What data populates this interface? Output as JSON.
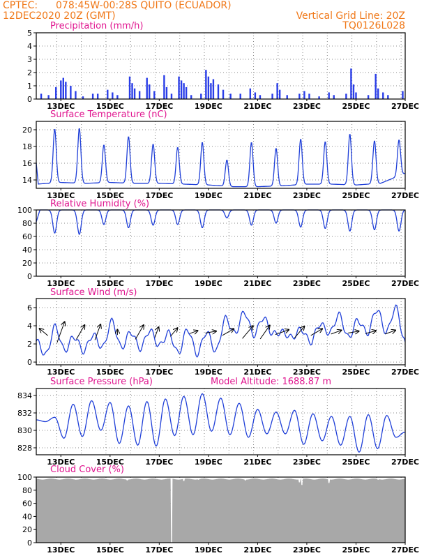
{
  "header": {
    "source": "CPTEC:",
    "location": "078:45W-00:28S  QUITO (ECUADOR)",
    "run": "12DEC2020 20Z (GMT)",
    "grid_note": "Vertical Grid Line: 20Z",
    "code": "TQ0126L028"
  },
  "panels": {
    "precipitation": {
      "title": "Precipitation (mm/h)"
    },
    "temperature": {
      "title": "Surface Temperature (nC)"
    },
    "humidity": {
      "title": "Relative Humidity (%)"
    },
    "wind": {
      "title": "Surface Wind (m/s)"
    },
    "pressure": {
      "title": "Surface Pressure (hPa)",
      "note": "Model Altitude: 1688.87 m"
    },
    "cloud": {
      "title": "Cloud Cover (%)"
    }
  },
  "date_ticks": [
    "13DEC",
    "15DEC",
    "17DEC",
    "19DEC",
    "21DEC",
    "23DEC",
    "25DEC",
    "27DEC"
  ],
  "colors": {
    "header": "#f07818",
    "title": "#e0158f",
    "series": "#1f3fd8",
    "bars": "#2a3ee8",
    "cloud": "#a8a8a8"
  },
  "chart_data": [
    {
      "type": "bar",
      "name": "precipitation",
      "x_range_days": [
        12.0,
        27.0
      ],
      "ylim": [
        0,
        5
      ],
      "yticks": [
        0,
        1,
        2,
        3,
        4,
        5
      ],
      "events": [
        {
          "day": 12.2,
          "value": 0.4
        },
        {
          "day": 12.5,
          "value": 0.3
        },
        {
          "day": 12.8,
          "value": 0.9
        },
        {
          "day": 13.0,
          "value": 1.4
        },
        {
          "day": 13.1,
          "value": 1.6
        },
        {
          "day": 13.2,
          "value": 1.3
        },
        {
          "day": 13.4,
          "value": 1.0
        },
        {
          "day": 13.6,
          "value": 0.6
        },
        {
          "day": 13.9,
          "value": 0.2
        },
        {
          "day": 14.3,
          "value": 0.4
        },
        {
          "day": 14.5,
          "value": 0.4
        },
        {
          "day": 14.9,
          "value": 0.7
        },
        {
          "day": 15.1,
          "value": 0.5
        },
        {
          "day": 15.3,
          "value": 0.3
        },
        {
          "day": 15.8,
          "value": 1.7
        },
        {
          "day": 15.9,
          "value": 1.2
        },
        {
          "day": 16.0,
          "value": 0.8
        },
        {
          "day": 16.2,
          "value": 0.6
        },
        {
          "day": 16.5,
          "value": 1.6
        },
        {
          "day": 16.6,
          "value": 1.1
        },
        {
          "day": 16.8,
          "value": 0.6
        },
        {
          "day": 17.2,
          "value": 1.8
        },
        {
          "day": 17.3,
          "value": 0.9
        },
        {
          "day": 17.5,
          "value": 0.4
        },
        {
          "day": 17.8,
          "value": 1.7
        },
        {
          "day": 17.9,
          "value": 1.4
        },
        {
          "day": 18.0,
          "value": 1.2
        },
        {
          "day": 18.1,
          "value": 0.9
        },
        {
          "day": 18.3,
          "value": 0.3
        },
        {
          "day": 18.7,
          "value": 0.4
        },
        {
          "day": 18.9,
          "value": 2.2
        },
        {
          "day": 19.0,
          "value": 1.7
        },
        {
          "day": 19.1,
          "value": 1.2
        },
        {
          "day": 19.2,
          "value": 1.5
        },
        {
          "day": 19.4,
          "value": 1.1
        },
        {
          "day": 19.6,
          "value": 0.7
        },
        {
          "day": 19.9,
          "value": 0.4
        },
        {
          "day": 20.3,
          "value": 0.4
        },
        {
          "day": 20.7,
          "value": 0.8
        },
        {
          "day": 20.9,
          "value": 0.5
        },
        {
          "day": 21.1,
          "value": 0.3
        },
        {
          "day": 21.6,
          "value": 0.4
        },
        {
          "day": 21.8,
          "value": 1.2
        },
        {
          "day": 21.9,
          "value": 0.7
        },
        {
          "day": 22.2,
          "value": 0.3
        },
        {
          "day": 22.7,
          "value": 0.4
        },
        {
          "day": 22.9,
          "value": 0.6
        },
        {
          "day": 23.1,
          "value": 0.4
        },
        {
          "day": 23.5,
          "value": 0.2
        },
        {
          "day": 23.9,
          "value": 0.5
        },
        {
          "day": 24.1,
          "value": 0.3
        },
        {
          "day": 24.6,
          "value": 0.4
        },
        {
          "day": 24.8,
          "value": 2.3
        },
        {
          "day": 24.9,
          "value": 1.1
        },
        {
          "day": 25.0,
          "value": 0.5
        },
        {
          "day": 25.5,
          "value": 0.3
        },
        {
          "day": 25.8,
          "value": 1.9
        },
        {
          "day": 25.9,
          "value": 0.8
        },
        {
          "day": 26.1,
          "value": 0.5
        },
        {
          "day": 26.3,
          "value": 0.3
        },
        {
          "day": 26.9,
          "value": 0.6
        }
      ]
    },
    {
      "type": "line",
      "name": "temperature",
      "x_range_days": [
        12.0,
        27.0
      ],
      "ylim": [
        13,
        21
      ],
      "yticks": [
        14,
        16,
        18,
        20
      ],
      "daily_peaks": [
        {
          "day": 12.75,
          "value": 20.1
        },
        {
          "day": 13.75,
          "value": 20.2
        },
        {
          "day": 14.75,
          "value": 18.2
        },
        {
          "day": 15.75,
          "value": 19.2
        },
        {
          "day": 16.75,
          "value": 18.3
        },
        {
          "day": 17.75,
          "value": 17.9
        },
        {
          "day": 18.75,
          "value": 18.5
        },
        {
          "day": 19.75,
          "value": 16.4
        },
        {
          "day": 20.75,
          "value": 18.5
        },
        {
          "day": 21.75,
          "value": 17.8
        },
        {
          "day": 22.75,
          "value": 18.9
        },
        {
          "day": 23.75,
          "value": 18.6
        },
        {
          "day": 24.75,
          "value": 19.5
        },
        {
          "day": 25.75,
          "value": 18.7
        },
        {
          "day": 26.75,
          "value": 18.8
        }
      ],
      "daily_min": [
        13.5,
        13.7,
        13.6,
        13.7,
        13.6,
        13.6,
        13.5,
        13.4,
        13.2,
        13.2,
        13.3,
        13.5,
        13.5,
        13.4,
        13.6,
        14.8
      ]
    },
    {
      "type": "line",
      "name": "relative_humidity",
      "x_range_days": [
        12.0,
        27.0
      ],
      "ylim": [
        0,
        100
      ],
      "yticks": [
        0,
        20,
        40,
        60,
        80,
        100
      ],
      "daily_minima": [
        {
          "day": 12.75,
          "value": 65
        },
        {
          "day": 13.75,
          "value": 63
        },
        {
          "day": 14.75,
          "value": 78
        },
        {
          "day": 15.75,
          "value": 73
        },
        {
          "day": 16.75,
          "value": 77
        },
        {
          "day": 17.75,
          "value": 78
        },
        {
          "day": 18.75,
          "value": 73
        },
        {
          "day": 19.75,
          "value": 88
        },
        {
          "day": 20.75,
          "value": 77
        },
        {
          "day": 21.75,
          "value": 80
        },
        {
          "day": 22.75,
          "value": 74
        },
        {
          "day": 23.75,
          "value": 72
        },
        {
          "day": 24.75,
          "value": 68
        },
        {
          "day": 25.75,
          "value": 70
        },
        {
          "day": 26.75,
          "value": 68
        }
      ]
    },
    {
      "type": "line",
      "name": "surface_wind",
      "x_range_days": [
        12.0,
        27.0
      ],
      "ylim": [
        -0.3,
        7
      ],
      "yticks": [
        0,
        2,
        4,
        6
      ],
      "speed": [
        2.3,
        0.8,
        3.9,
        1.3,
        2.8,
        1.2,
        3.0,
        1.6,
        4.5,
        1.6,
        3.3,
        1.5,
        3.5,
        1.8,
        3.2,
        1.0,
        3.6,
        0.9,
        3.3,
        1.2,
        4.8,
        3.2,
        5.5,
        3.0,
        4.9,
        3.1,
        3.3,
        2.7,
        3.6,
        2.2,
        4.2,
        3.2,
        5.2,
        2.7,
        4.6,
        3.2,
        5.8,
        3.3,
        6.0,
        2.2
      ],
      "vectors": [
        {
          "day": 12.3,
          "speed": 1.0,
          "dir_deg": 130
        },
        {
          "day": 13.0,
          "speed": 2.0,
          "dir_deg": 200
        },
        {
          "day": 13.8,
          "speed": 1.5,
          "dir_deg": 210
        },
        {
          "day": 14.5,
          "speed": 1.5,
          "dir_deg": 200
        },
        {
          "day": 15.3,
          "speed": 0.5,
          "dir_deg": 180
        },
        {
          "day": 16.2,
          "speed": 1.5,
          "dir_deg": 210
        },
        {
          "day": 16.9,
          "speed": 1.0,
          "dir_deg": 200
        },
        {
          "day": 17.6,
          "speed": 1.0,
          "dir_deg": 220
        },
        {
          "day": 18.4,
          "speed": 0.8,
          "dir_deg": 250
        },
        {
          "day": 19.1,
          "speed": 1.0,
          "dir_deg": 260
        },
        {
          "day": 19.8,
          "speed": 1.2,
          "dir_deg": 240
        },
        {
          "day": 20.6,
          "speed": 1.5,
          "dir_deg": 220
        },
        {
          "day": 21.3,
          "speed": 1.5,
          "dir_deg": 215
        },
        {
          "day": 22.0,
          "speed": 1.3,
          "dir_deg": 250
        },
        {
          "day": 22.7,
          "speed": 1.4,
          "dir_deg": 220
        },
        {
          "day": 23.4,
          "speed": 1.2,
          "dir_deg": 240
        },
        {
          "day": 24.2,
          "speed": 1.0,
          "dir_deg": 250
        },
        {
          "day": 24.9,
          "speed": 1.0,
          "dir_deg": 260
        },
        {
          "day": 25.6,
          "speed": 1.0,
          "dir_deg": 255
        },
        {
          "day": 26.4,
          "speed": 1.0,
          "dir_deg": 250
        }
      ]
    },
    {
      "type": "line",
      "name": "surface_pressure",
      "x_range_days": [
        12.0,
        27.0
      ],
      "ylim": [
        827.2,
        834.8
      ],
      "yticks": [
        828,
        830,
        832,
        834
      ],
      "half_day_extrema": [
        831.2,
        831.0,
        831.5,
        829.1,
        833.0,
        829.3,
        833.4,
        830.0,
        833.2,
        828.5,
        832.8,
        828.3,
        833.3,
        828.2,
        833.6,
        829.4,
        833.9,
        829.5,
        834.2,
        829.9,
        833.7,
        829.5,
        833.1,
        829.2,
        832.4,
        829.6,
        832.1,
        829.6,
        832.3,
        828.4,
        831.9,
        828.8,
        831.6,
        828.3,
        831.6,
        827.5,
        831.8,
        827.9,
        831.7,
        829.2,
        829.8
      ]
    },
    {
      "type": "area",
      "name": "cloud_cover",
      "x_range_days": [
        12.0,
        27.0
      ],
      "ylim": [
        0,
        100
      ],
      "yticks": [
        0,
        20,
        40,
        60,
        80,
        100
      ],
      "typical_value": 97,
      "dips": [
        {
          "day": 13.6,
          "value": 96
        },
        {
          "day": 15.7,
          "value": 95
        },
        {
          "day": 17.5,
          "value": 0
        },
        {
          "day": 18.0,
          "value": 94
        },
        {
          "day": 18.6,
          "value": 96
        },
        {
          "day": 20.5,
          "value": 95
        },
        {
          "day": 22.7,
          "value": 92
        },
        {
          "day": 22.8,
          "value": 88
        },
        {
          "day": 23.9,
          "value": 91
        },
        {
          "day": 25.9,
          "value": 96
        }
      ]
    }
  ]
}
